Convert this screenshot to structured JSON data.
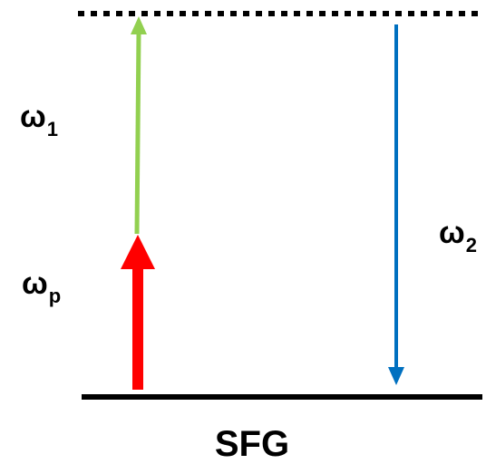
{
  "title": "SFG",
  "labels": {
    "omega1": {
      "symbol": "ω",
      "sub": "1"
    },
    "omegap": {
      "symbol": "ω",
      "sub": "p"
    },
    "omega2": {
      "symbol": "ω",
      "sub": "2"
    }
  },
  "colors": {
    "levels": "#000000",
    "omega1_arrow": "#92d050",
    "omegap_arrow": "#ff0000",
    "omega2_arrow": "#0070c0",
    "text": "#000000"
  }
}
